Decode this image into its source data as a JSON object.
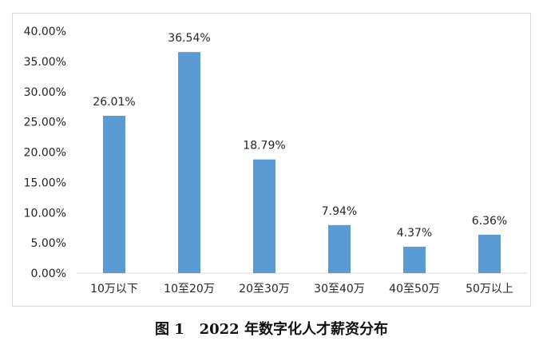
{
  "caption": "图 1   2022 年数字化人才薪资分布",
  "colors": {
    "bar": "#5b9bd5",
    "axis": "#d9d9d9",
    "text": "#262626"
  },
  "chart_data": {
    "type": "bar",
    "categories": [
      "10万以下",
      "10至20万",
      "20至30万",
      "30至40万",
      "40至50万",
      "50万以上"
    ],
    "values": [
      26.01,
      36.54,
      18.79,
      7.94,
      4.37,
      6.36
    ],
    "data_labels": [
      "26.01%",
      "36.54%",
      "18.79%",
      "7.94%",
      "4.37%",
      "6.36%"
    ],
    "ylim": [
      0,
      40
    ],
    "yticks": [
      0,
      5,
      10,
      15,
      20,
      25,
      30,
      35,
      40
    ],
    "ytick_labels": [
      "0.00%",
      "5.00%",
      "10.00%",
      "15.00%",
      "20.00%",
      "25.00%",
      "30.00%",
      "35.00%",
      "40.00%"
    ],
    "grid": false,
    "legend": "none",
    "title": "",
    "xlabel": "",
    "ylabel": ""
  }
}
